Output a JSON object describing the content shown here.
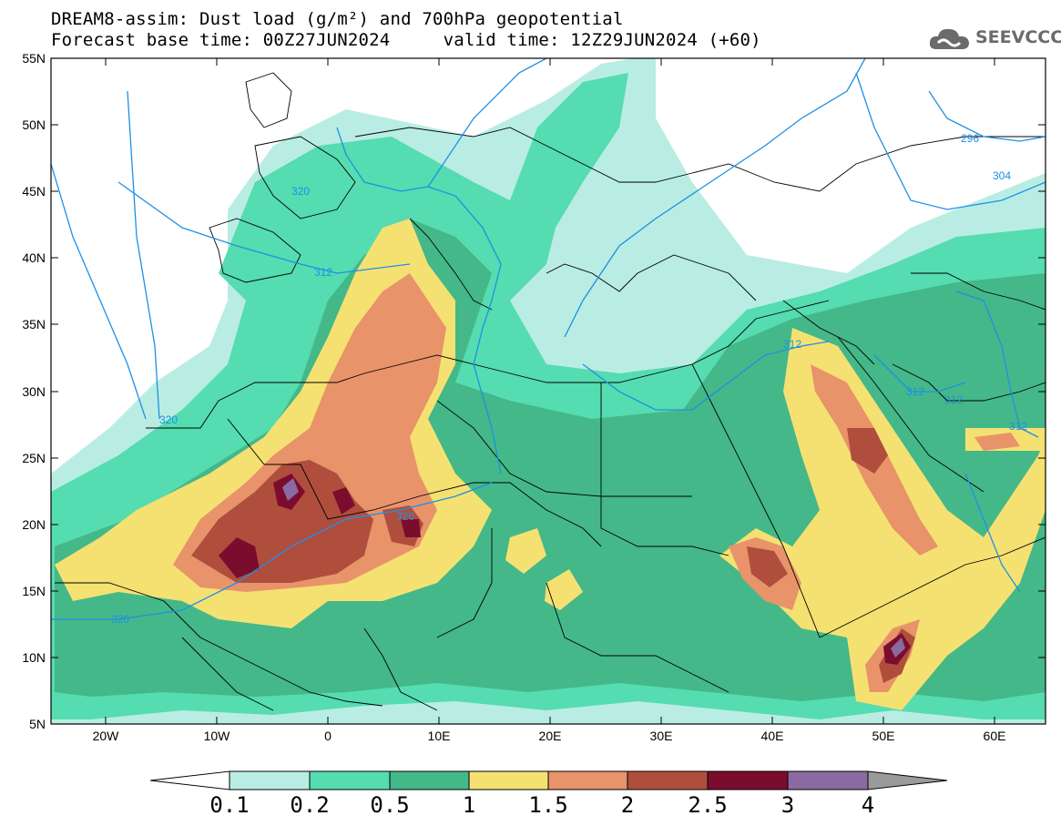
{
  "header": {
    "title_line1": "DREAM8-assim: Dust load (g/m²) and 700hPa geopotential",
    "title_line2": "Forecast base time: 00Z27JUN2024     valid time: 12Z29JUN2024 (+60)",
    "logo_text": "SEEVCCC"
  },
  "axes": {
    "lat_labels": [
      "55N",
      "50N",
      "45N",
      "40N",
      "35N",
      "30N",
      "25N",
      "20N",
      "15N",
      "10N",
      "5N"
    ],
    "lon_labels": [
      "20W",
      "10W",
      "0",
      "10E",
      "20E",
      "30E",
      "40E",
      "50E",
      "60E"
    ]
  },
  "contour_labels": [
    "320",
    "312",
    "320",
    "320",
    "320",
    "312",
    "312",
    "312",
    "312",
    "296",
    "304"
  ],
  "colorbar": {
    "labels": [
      "0.1",
      "0.2",
      "0.5",
      "1",
      "1.5",
      "2",
      "2.5",
      "3",
      "4"
    ],
    "colors": [
      "#ffffff",
      "#b9ede3",
      "#55dcb0",
      "#44b888",
      "#f5e172",
      "#e8936a",
      "#b04e3e",
      "#7a0d2e",
      "#8a6aa0",
      "#9a9a9a"
    ]
  },
  "map_colors": {
    "ocean": "#ffffff",
    "level_01": "#b9ede3",
    "level_02": "#55dcb0",
    "level_05": "#44b888",
    "level_1": "#f5e172",
    "level_15": "#e8936a",
    "level_2": "#b04e3e",
    "level_25": "#7a0d2e",
    "level_3": "#8a6aa0",
    "contour": "#1e90e6",
    "border": "#000000"
  }
}
